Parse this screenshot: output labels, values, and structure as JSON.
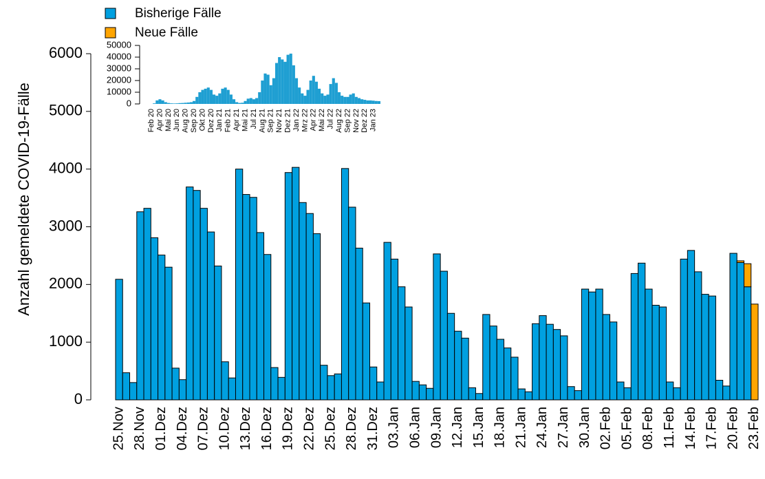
{
  "chart_data": [
    {
      "type": "bar",
      "stacked": true,
      "y_label": "Anzahl gemeldete COVID-19-Fälle",
      "categories": [
        "25.Nov",
        null,
        null,
        "28.Nov",
        null,
        null,
        "01.Dez",
        null,
        null,
        "04.Dez",
        null,
        null,
        "07.Dez",
        null,
        null,
        "10.Dez",
        null,
        null,
        "13.Dez",
        null,
        null,
        "16.Dez",
        null,
        null,
        "19.Dez",
        null,
        null,
        "22.Dez",
        null,
        null,
        "25.Dez",
        null,
        null,
        "28.Dez",
        null,
        null,
        "31.Dez",
        null,
        null,
        "03.Jan",
        null,
        null,
        "06.Jan",
        null,
        null,
        "09.Jan",
        null,
        null,
        "12.Jan",
        null,
        null,
        "15.Jan",
        null,
        null,
        "18.Jan",
        null,
        null,
        "21.Jan",
        null,
        null,
        "24.Jan",
        null,
        null,
        "27.Jan",
        null,
        null,
        "30.Jan",
        null,
        null,
        "02.Feb",
        null,
        null,
        "05.Feb",
        null,
        null,
        "08.Feb",
        null,
        null,
        "11.Feb",
        null,
        null,
        "14.Feb",
        null,
        null,
        "17.Feb",
        null,
        null,
        "20.Feb",
        null,
        null,
        "23.Feb"
      ],
      "series": [
        {
          "name": "Bisherige Fälle",
          "color": "#00a0e0",
          "values": [
            2090,
            470,
            300,
            3260,
            3320,
            2810,
            2510,
            2300,
            550,
            350,
            3690,
            3630,
            3320,
            2910,
            2320,
            660,
            380,
            4000,
            3560,
            3510,
            2900,
            2520,
            560,
            390,
            3940,
            4030,
            3420,
            3230,
            2880,
            600,
            420,
            450,
            4010,
            3340,
            2630,
            1680,
            570,
            310,
            2730,
            2440,
            1960,
            1610,
            320,
            260,
            200,
            2530,
            2230,
            1500,
            1190,
            1070,
            210,
            110,
            1480,
            1280,
            1050,
            900,
            740,
            190,
            140,
            1320,
            1460,
            1310,
            1220,
            1110,
            230,
            160,
            1920,
            1870,
            1920,
            1480,
            1350,
            310,
            210,
            2190,
            2370,
            1920,
            1640,
            1610,
            310,
            210,
            2440,
            2590,
            2220,
            1830,
            1800,
            340,
            240,
            2540,
            2380,
            1960,
            0
          ]
        },
        {
          "name": "Neue Fälle",
          "color": "#ffa500",
          "values": [
            0,
            0,
            0,
            0,
            0,
            0,
            0,
            0,
            0,
            0,
            0,
            0,
            0,
            0,
            0,
            0,
            0,
            0,
            0,
            0,
            0,
            0,
            0,
            0,
            0,
            0,
            0,
            0,
            0,
            0,
            0,
            0,
            0,
            0,
            0,
            0,
            0,
            0,
            0,
            0,
            0,
            0,
            0,
            0,
            0,
            0,
            0,
            0,
            0,
            0,
            0,
            0,
            0,
            0,
            0,
            0,
            0,
            0,
            0,
            0,
            0,
            0,
            0,
            0,
            0,
            0,
            0,
            0,
            0,
            0,
            0,
            0,
            0,
            0,
            0,
            0,
            0,
            0,
            0,
            0,
            0,
            0,
            0,
            0,
            0,
            0,
            0,
            0,
            30,
            400,
            1660
          ]
        }
      ],
      "ylim": [
        0,
        6000
      ],
      "yticks": [
        0,
        1000,
        2000,
        3000,
        4000,
        5000,
        6000
      ],
      "legend": "top-left"
    },
    {
      "type": "bar",
      "categories": [
        "Feb 20",
        null,
        null,
        "Apr 20",
        null,
        null,
        "Mai 20",
        null,
        null,
        "Jun 20",
        null,
        null,
        "Aug 20",
        null,
        null,
        "Sep 20",
        null,
        null,
        "Okt 20",
        null,
        null,
        "Dez 20",
        null,
        null,
        "Jan 21",
        null,
        null,
        "Feb 21",
        null,
        null,
        "Apr 21",
        null,
        null,
        "Mai 21",
        null,
        null,
        "Jul 21",
        null,
        null,
        "Aug 21",
        null,
        null,
        "Sep 21",
        null,
        null,
        "Nov 21",
        null,
        null,
        "Dez 21",
        null,
        null,
        "Jan 22",
        null,
        null,
        "Mrz 22",
        null,
        null,
        "Apr 22",
        null,
        null,
        "Mai 22",
        null,
        null,
        "Jul 22",
        null,
        null,
        "Aug 22",
        null,
        null,
        "Sep 22",
        null,
        null,
        "Nov 22",
        null,
        null,
        "Dez 22",
        null,
        null,
        "Jan 23",
        null,
        null
      ],
      "values": [
        0,
        500,
        3000,
        4000,
        3000,
        1500,
        800,
        500,
        400,
        500,
        700,
        800,
        1000,
        1200,
        1500,
        2500,
        6000,
        10000,
        12000,
        13000,
        14000,
        12000,
        8000,
        7000,
        9000,
        13000,
        14000,
        12000,
        8000,
        4000,
        1500,
        800,
        1000,
        2500,
        4500,
        5000,
        4000,
        5000,
        10000,
        20000,
        26000,
        25000,
        16000,
        22000,
        35000,
        40000,
        38000,
        36000,
        42000,
        43000,
        33000,
        22000,
        14000,
        9000,
        7000,
        12000,
        20000,
        24000,
        19000,
        13000,
        9000,
        7000,
        8000,
        17000,
        22000,
        18000,
        10000,
        7000,
        6000,
        6000,
        8000,
        9000,
        6000,
        5000,
        4000,
        3500,
        3000,
        3000,
        2800,
        2500,
        2400
      ],
      "color": "#1f9fd2",
      "ylim": [
        0,
        50000
      ],
      "yticks": [
        0,
        10000,
        20000,
        30000,
        40000,
        50000
      ]
    }
  ]
}
